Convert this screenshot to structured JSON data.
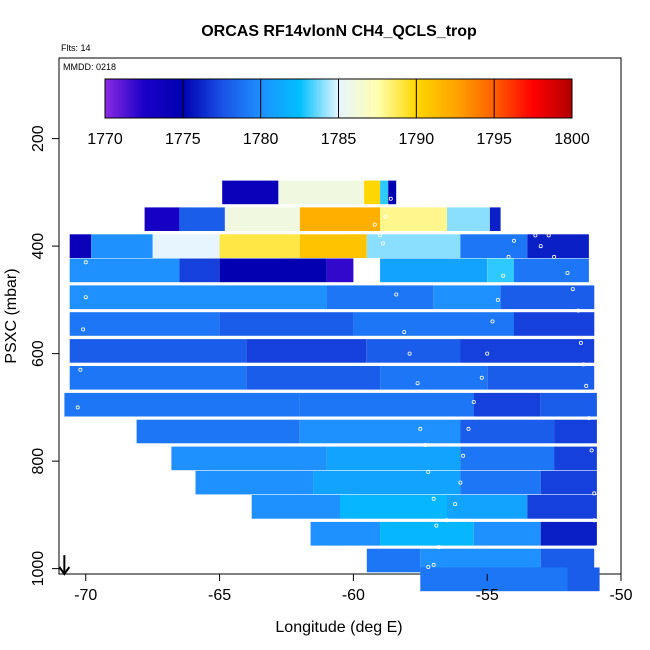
{
  "chart_data": {
    "type": "heatmap",
    "title": "ORCAS RF14vlonN CH4_QCLS_trop",
    "annotations": {
      "flights": "Flts: 14",
      "date": "MMDD: 0218"
    },
    "xlabel": "Longitude (deg E)",
    "ylabel": "PSXC (mbar)",
    "xlim": [
      -71,
      -50
    ],
    "ylim": [
      1010,
      50
    ],
    "x_ticks": [
      -70,
      -65,
      -60,
      -55,
      -50
    ],
    "x_tick_labels": [
      "-70",
      "-65",
      "-60",
      "-55",
      "-50"
    ],
    "y_ticks": [
      200,
      400,
      600,
      800,
      1000
    ],
    "y_tick_labels": [
      "200",
      "400",
      "600",
      "800",
      "1000"
    ],
    "colorbar": {
      "range": [
        1770,
        1800
      ],
      "ticks": [
        1770,
        1775,
        1780,
        1785,
        1790,
        1795,
        1800
      ],
      "tick_labels": [
        "1770",
        "1775",
        "1780",
        "1785",
        "1790",
        "1795",
        "1800"
      ],
      "stops": [
        "#8a2be2",
        "#1a00c8",
        "#0000b0",
        "#1a50e6",
        "#1e90ff",
        "#00bfff",
        "#e6f5ff",
        "#ffffb0",
        "#ffd700",
        "#ffa500",
        "#ff6000",
        "#ff0000",
        "#b00000"
      ]
    },
    "pressure_bins": [
      {
        "p": 300,
        "segments": [
          {
            "x": [
              -64.9,
              -62.8
            ],
            "v": 1774
          },
          {
            "x": [
              -62.8,
              -59.6
            ],
            "v": 1786
          },
          {
            "x": [
              -59.6,
              -59.0
            ],
            "v": 1790
          },
          {
            "x": [
              -59.0,
              -58.7
            ],
            "v": 1783
          },
          {
            "x": [
              -58.7,
              -58.4
            ],
            "v": 1775
          }
        ]
      },
      {
        "p": 350,
        "segments": [
          {
            "x": [
              -67.8,
              -66.5
            ],
            "v": 1773
          },
          {
            "x": [
              -66.5,
              -64.8
            ],
            "v": 1778
          },
          {
            "x": [
              -64.8,
              -62.0
            ],
            "v": 1786
          },
          {
            "x": [
              -62.0,
              -59.0
            ],
            "v": 1792
          },
          {
            "x": [
              -59.0,
              -56.5
            ],
            "v": 1788
          },
          {
            "x": [
              -56.5,
              -54.9
            ],
            "v": 1784
          },
          {
            "x": [
              -54.9,
              -54.5
            ],
            "v": 1776
          }
        ]
      },
      {
        "p": 400,
        "segments": [
          {
            "x": [
              -70.6,
              -69.8
            ],
            "v": 1774
          },
          {
            "x": [
              -69.8,
              -67.5
            ],
            "v": 1780
          },
          {
            "x": [
              -67.5,
              -65.0
            ],
            "v": 1785
          },
          {
            "x": [
              -65.0,
              -62.0
            ],
            "v": 1789
          },
          {
            "x": [
              -62.0,
              -59.5
            ],
            "v": 1791
          },
          {
            "x": [
              -59.5,
              -56.0
            ],
            "v": 1784
          },
          {
            "x": [
              -56.0,
              -53.5
            ],
            "v": 1779
          },
          {
            "x": [
              -53.5,
              -51.2
            ],
            "v": 1776
          }
        ]
      },
      {
        "p": 445,
        "segments": [
          {
            "x": [
              -70.6,
              -66.5
            ],
            "v": 1780
          },
          {
            "x": [
              -66.5,
              -65.0
            ],
            "v": 1777
          },
          {
            "x": [
              -65.0,
              -61.0
            ],
            "v": 1775
          },
          {
            "x": [
              -61.0,
              -60.0
            ],
            "v": 1772
          },
          {
            "x": [
              -59.0,
              -55.0
            ],
            "v": 1781
          },
          {
            "x": [
              -55.0,
              -54.0
            ],
            "v": 1783
          },
          {
            "x": [
              -54.0,
              -51.2
            ],
            "v": 1779
          }
        ]
      },
      {
        "p": 495,
        "segments": [
          {
            "x": [
              -70.6,
              -61.0
            ],
            "v": 1780
          },
          {
            "x": [
              -61.0,
              -57.0
            ],
            "v": 1779
          },
          {
            "x": [
              -57.0,
              -54.5
            ],
            "v": 1780
          },
          {
            "x": [
              -54.5,
              -51.0
            ],
            "v": 1778
          }
        ]
      },
      {
        "p": 545,
        "segments": [
          {
            "x": [
              -70.6,
              -65.0
            ],
            "v": 1779
          },
          {
            "x": [
              -65.0,
              -60.0
            ],
            "v": 1778
          },
          {
            "x": [
              -60.0,
              -54.0
            ],
            "v": 1779
          },
          {
            "x": [
              -54.0,
              -51.0
            ],
            "v": 1777
          }
        ]
      },
      {
        "p": 595,
        "segments": [
          {
            "x": [
              -70.6,
              -64.0
            ],
            "v": 1778
          },
          {
            "x": [
              -64.0,
              -59.5
            ],
            "v": 1777
          },
          {
            "x": [
              -59.5,
              -56.0
            ],
            "v": 1778
          },
          {
            "x": [
              -56.0,
              -51.0
            ],
            "v": 1777
          }
        ]
      },
      {
        "p": 645,
        "segments": [
          {
            "x": [
              -70.6,
              -64.0
            ],
            "v": 1779
          },
          {
            "x": [
              -64.0,
              -59.0
            ],
            "v": 1778
          },
          {
            "x": [
              -59.0,
              -55.0
            ],
            "v": 1779
          },
          {
            "x": [
              -55.0,
              -51.0
            ],
            "v": 1778
          }
        ]
      },
      {
        "p": 695,
        "segments": [
          {
            "x": [
              -70.8,
              -62.0
            ],
            "v": 1779
          },
          {
            "x": [
              -62.0,
              -55.5
            ],
            "v": 1779
          },
          {
            "x": [
              -55.5,
              -53.0
            ],
            "v": 1777
          },
          {
            "x": [
              -53.0,
              -50.9
            ],
            "v": 1778
          }
        ]
      },
      {
        "p": 745,
        "segments": [
          {
            "x": [
              -68.1,
              -62.0
            ],
            "v": 1779
          },
          {
            "x": [
              -62.0,
              -56.0
            ],
            "v": 1780
          },
          {
            "x": [
              -56.0,
              -52.5
            ],
            "v": 1778
          },
          {
            "x": [
              -52.5,
              -50.9
            ],
            "v": 1777
          }
        ]
      },
      {
        "p": 795,
        "segments": [
          {
            "x": [
              -66.8,
              -61.0
            ],
            "v": 1780
          },
          {
            "x": [
              -61.0,
              -56.0
            ],
            "v": 1781
          },
          {
            "x": [
              -56.0,
              -52.5
            ],
            "v": 1779
          },
          {
            "x": [
              -52.5,
              -50.9
            ],
            "v": 1777
          }
        ]
      },
      {
        "p": 840,
        "segments": [
          {
            "x": [
              -65.9,
              -61.5
            ],
            "v": 1780
          },
          {
            "x": [
              -61.5,
              -56.0
            ],
            "v": 1781
          },
          {
            "x": [
              -56.0,
              -53.0
            ],
            "v": 1779
          },
          {
            "x": [
              -53.0,
              -50.9
            ],
            "v": 1777
          }
        ]
      },
      {
        "p": 885,
        "segments": [
          {
            "x": [
              -63.8,
              -60.5
            ],
            "v": 1780
          },
          {
            "x": [
              -60.5,
              -56.5
            ],
            "v": 1782
          },
          {
            "x": [
              -56.5,
              -53.5
            ],
            "v": 1781
          },
          {
            "x": [
              -53.5,
              -50.9
            ],
            "v": 1777
          }
        ]
      },
      {
        "p": 935,
        "segments": [
          {
            "x": [
              -61.6,
              -59.0
            ],
            "v": 1780
          },
          {
            "x": [
              -59.0,
              -55.5
            ],
            "v": 1782
          },
          {
            "x": [
              -55.5,
              -53.0
            ],
            "v": 1780
          },
          {
            "x": [
              -53.0,
              -50.9
            ],
            "v": 1776
          }
        ]
      },
      {
        "p": 985,
        "segments": [
          {
            "x": [
              -59.5,
              -57.5
            ],
            "v": 1779
          },
          {
            "x": [
              -57.5,
              -53.0
            ],
            "v": 1780
          },
          {
            "x": [
              -53.0,
              -51.0
            ],
            "v": 1778
          }
        ]
      },
      {
        "p": 1020,
        "segments": [
          {
            "x": [
              -57.5,
              -52.0
            ],
            "v": 1779
          },
          {
            "x": [
              -52.0,
              -50.8
            ],
            "v": 1778
          }
        ]
      }
    ],
    "flight_track": [
      [
        -70.5,
        1000
      ],
      [
        -70.3,
        700
      ],
      [
        -70.2,
        630
      ],
      [
        -70.1,
        555
      ],
      [
        -70.0,
        495
      ],
      [
        -70.0,
        430
      ],
      [
        -59.2,
        360
      ],
      [
        -59.0,
        380
      ],
      [
        -58.9,
        395
      ],
      [
        -58.8,
        345
      ],
      [
        -58.6,
        312
      ],
      [
        -58.4,
        490
      ],
      [
        -58.1,
        560
      ],
      [
        -57.9,
        600
      ],
      [
        -57.6,
        655
      ],
      [
        -57.5,
        740
      ],
      [
        -57.3,
        770
      ],
      [
        -57.2,
        820
      ],
      [
        -57.0,
        870
      ],
      [
        -56.9,
        920
      ],
      [
        -56.8,
        960
      ],
      [
        -57.0,
        993
      ],
      [
        -57.2,
        997
      ],
      [
        -56.5,
        910
      ],
      [
        -56.2,
        880
      ],
      [
        -56.0,
        840
      ],
      [
        -55.9,
        790
      ],
      [
        -55.7,
        740
      ],
      [
        -55.5,
        690
      ],
      [
        -55.2,
        645
      ],
      [
        -55.0,
        600
      ],
      [
        -54.8,
        540
      ],
      [
        -54.6,
        500
      ],
      [
        -54.4,
        455
      ],
      [
        -54.2,
        420
      ],
      [
        -54.0,
        390
      ],
      [
        -53.2,
        380
      ],
      [
        -53.0,
        400
      ],
      [
        -52.7,
        380
      ],
      [
        -52.5,
        420
      ],
      [
        -52.0,
        450
      ],
      [
        -51.8,
        480
      ],
      [
        -51.6,
        520
      ],
      [
        -51.5,
        580
      ],
      [
        -51.4,
        620
      ],
      [
        -51.3,
        660
      ],
      [
        -51.2,
        720
      ],
      [
        -51.1,
        780
      ],
      [
        -51.0,
        860
      ],
      [
        -51.0,
        910
      ],
      [
        -50.9,
        960
      ]
    ],
    "arrow": {
      "x": -70.8,
      "p_from": 975,
      "p_to": 1010
    }
  }
}
